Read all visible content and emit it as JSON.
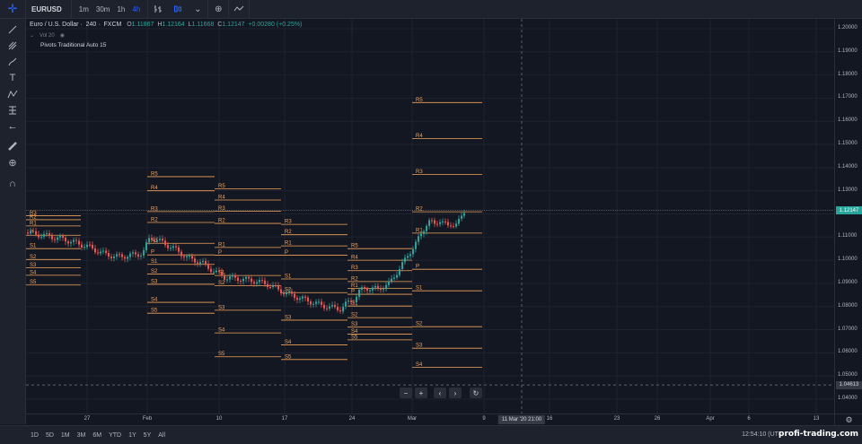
{
  "toolbar": {
    "symbol": "EURUSD",
    "intervals": [
      "1m",
      "30m",
      "1h",
      "4h"
    ],
    "active_interval": "4h",
    "icons": [
      "bar-style-icon",
      "candle-style-icon",
      "chevron-down-icon",
      "add-indicator-icon",
      "compare-icon"
    ]
  },
  "legend": {
    "title": "Euro / U.S. Dollar",
    "interval": "240",
    "exchange": "FXCM",
    "o_label": "O",
    "o_val": "1.11867",
    "h_label": "H",
    "h_val": "1.12164",
    "l_label": "L",
    "l_val": "1.11668",
    "c_label": "C",
    "c_val": "1.12147",
    "change": "+0.00280 (+0.25%)",
    "volume_label": "Vol  20",
    "indicator": "Pivots Traditional Auto 15"
  },
  "price_axis": {
    "ticks": [
      "1.20000",
      "1.19000",
      "1.18000",
      "1.17000",
      "1.16000",
      "1.15000",
      "1.14000",
      "1.13000",
      "1.12000",
      "1.11000",
      "1.10000",
      "1.09000",
      "1.08000",
      "1.07000",
      "1.06000",
      "1.05000",
      "1.04000"
    ],
    "current_price": "1.12147",
    "crosshair_price": "1.04613"
  },
  "time_axis": {
    "labels": [
      "27",
      "Feb",
      "10",
      "17",
      "24",
      "Mar",
      "9",
      "16",
      "23",
      "26",
      "Apr",
      "6",
      "13"
    ],
    "crosshair_time": "11 Mar '20   21:00"
  },
  "bottom": {
    "ranges": [
      "1D",
      "5D",
      "1M",
      "3M",
      "6M",
      "YTD",
      "1Y",
      "5Y",
      "All"
    ],
    "clock": "12:54:10 (UTC",
    "watermark": "profi-trading.com"
  },
  "colors": {
    "background": "#131722",
    "pivot_line": "#f2a35a",
    "up": "#26a69a",
    "down": "#ef5350",
    "accent": "#2962ff"
  },
  "pivot_periods": [
    {
      "labels": [
        "R3",
        "R2",
        "R1",
        "P",
        "S1",
        "S2",
        "S3",
        "S4",
        "S5"
      ],
      "prices": [
        1.1192,
        1.1175,
        1.1148,
        1.1108,
        1.105,
        1.1003,
        1.0968,
        1.0935,
        1.0893
      ]
    },
    {
      "labels": [
        "R5",
        "R4",
        "R3",
        "R2",
        "R1",
        "P",
        "S1",
        "S2",
        "S3",
        "S4",
        "S5"
      ],
      "prices": [
        1.1361,
        1.13,
        1.121,
        1.1163,
        1.1073,
        1.1023,
        1.0982,
        1.094,
        1.0896,
        1.0818,
        1.0771
      ]
    },
    {
      "labels": [
        "R5",
        "R4",
        "R3",
        "R2",
        "R1",
        "P",
        "S1",
        "S2",
        "S3",
        "S4",
        "S5"
      ],
      "prices": [
        1.1308,
        1.126,
        1.1212,
        1.1159,
        1.1055,
        1.1022,
        1.0934,
        1.089,
        1.0784,
        1.0686,
        1.0583
      ]
    },
    {
      "labels": [
        "R3",
        "R2",
        "R1",
        "P",
        "S1",
        "S2",
        "S3",
        "S4",
        "S5"
      ],
      "prices": [
        1.1155,
        1.111,
        1.1062,
        1.1022,
        1.0919,
        1.086,
        1.0741,
        1.0634,
        1.0571
      ]
    },
    {
      "labels": [
        "R5",
        "R4",
        "R3",
        "R2",
        "R1",
        "P",
        "S1",
        "S2",
        "S3",
        "S4",
        "S5"
      ],
      "prices": [
        1.105,
        1.1,
        1.0955,
        1.0908,
        1.0878,
        1.0853,
        1.0802,
        1.0752,
        1.0711,
        1.0681,
        1.0656
      ]
    },
    {
      "labels": [
        "R5",
        "R4",
        "R3",
        "R2",
        "R1",
        "P",
        "S1",
        "S2",
        "S3",
        "S4"
      ],
      "prices": [
        1.1681,
        1.1526,
        1.1371,
        1.1209,
        1.1117,
        1.0961,
        1.0868,
        1.0713,
        1.062,
        1.0537
      ]
    }
  ]
}
